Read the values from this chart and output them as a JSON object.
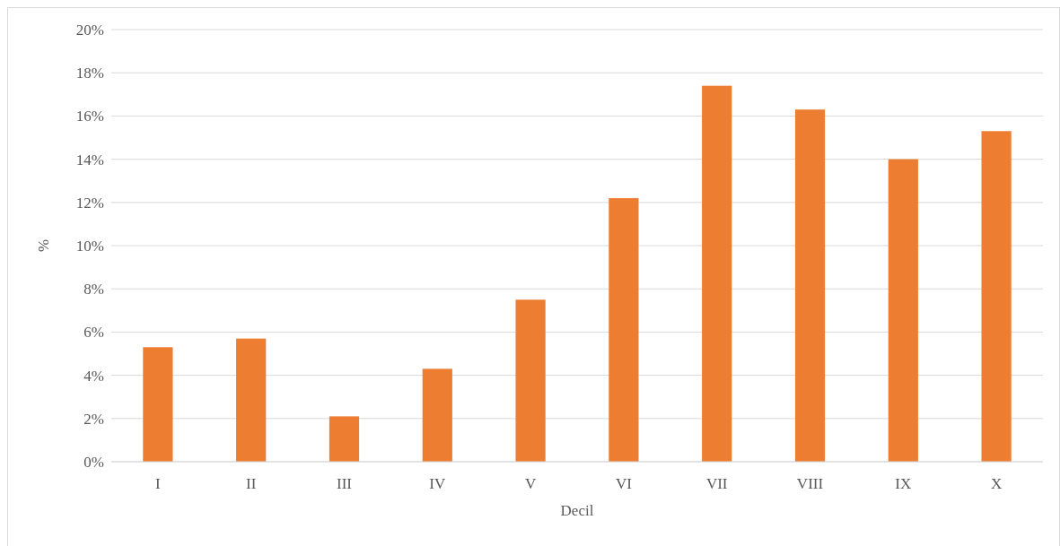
{
  "chart_data": {
    "type": "bar",
    "xlabel": "Decil",
    "ylabel": "%",
    "categories": [
      "I",
      "II",
      "III",
      "IV",
      "V",
      "VI",
      "VII",
      "VIII",
      "IX",
      "X"
    ],
    "values": [
      5.3,
      5.7,
      2.1,
      4.3,
      7.5,
      12.2,
      17.4,
      16.3,
      14.0,
      15.3
    ],
    "color": "#ed7d31",
    "ylim": [
      0,
      20
    ],
    "yticks": [
      {
        "value": 0,
        "label": "0%"
      },
      {
        "value": 2,
        "label": "2%"
      },
      {
        "value": 4,
        "label": "4%"
      },
      {
        "value": 6,
        "label": "6%"
      },
      {
        "value": 8,
        "label": "8%"
      },
      {
        "value": 10,
        "label": "10%"
      },
      {
        "value": 12,
        "label": "12%"
      },
      {
        "value": 14,
        "label": "14%"
      },
      {
        "value": 16,
        "label": "16%"
      },
      {
        "value": 18,
        "label": "18%"
      },
      {
        "value": 20,
        "label": "20%"
      }
    ],
    "grid": "y"
  }
}
